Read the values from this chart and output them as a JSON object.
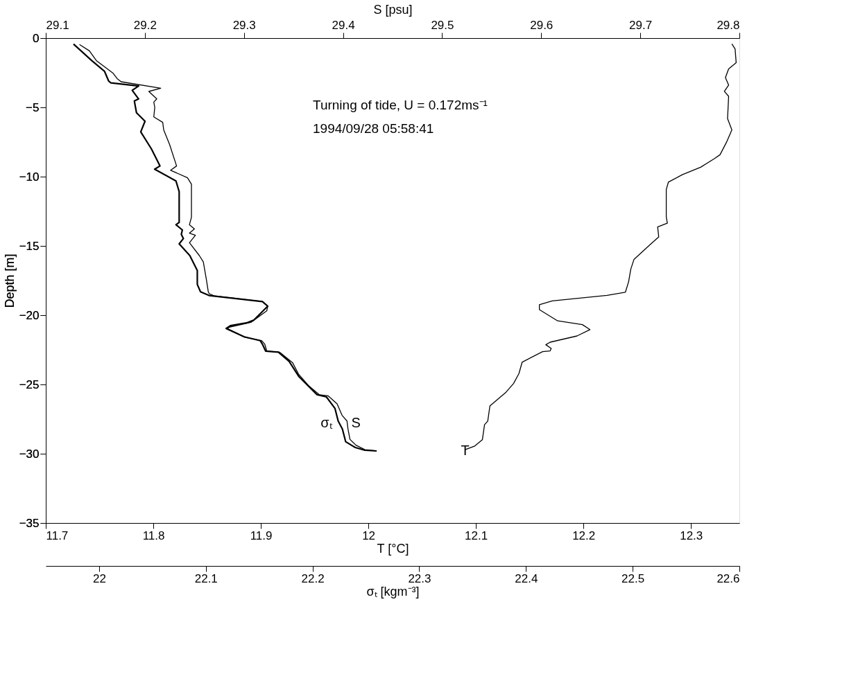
{
  "chart_data": [
    {
      "type": "line",
      "xlabel": "T  [°C]",
      "x2label": "S  [psu]",
      "ylabel": "Depth  [m]",
      "xlim": [
        11.7,
        12.345
      ],
      "xticks": [
        11.7,
        11.8,
        11.9,
        12,
        12.1,
        12.2,
        12.3
      ],
      "x2lim": [
        29.1,
        29.8
      ],
      "x2ticks": [
        29.1,
        29.2,
        29.3,
        29.4,
        29.5,
        29.6,
        29.7,
        29.8
      ],
      "ylim": [
        -35,
        0
      ],
      "yticks": [
        -35,
        -30,
        -25,
        -20,
        -15,
        -10,
        -5,
        0
      ],
      "grid": false,
      "legend": false,
      "line_style": "solid",
      "marker": "none",
      "annotations": [
        "Turning of tide, U = 0.172ms⁻¹",
        "1994/09/28 05:58:41"
      ],
      "series": [
        {
          "name": "S",
          "color": "#000000",
          "axis": "x2",
          "x": [
            29.134,
            29.144,
            29.151,
            29.168,
            29.172,
            29.176,
            29.216,
            29.204,
            29.212,
            29.209,
            29.21,
            29.209,
            29.218,
            29.219,
            29.225,
            29.232,
            29.226,
            29.243,
            29.247,
            29.247,
            29.245,
            29.25,
            29.245,
            29.251,
            29.245,
            29.255,
            29.259,
            29.262,
            29.264,
            29.265,
            29.27,
            29.319,
            29.324,
            29.323,
            29.307,
            29.286,
            29.283,
            29.301,
            29.318,
            29.321,
            29.323,
            29.336,
            29.349,
            29.355,
            29.365,
            29.376,
            29.385,
            29.394,
            29.399,
            29.404,
            29.405,
            29.407,
            29.413,
            29.422,
            29.434
          ],
          "values": [
            -0.46,
            -0.92,
            -1.62,
            -2.54,
            -2.92,
            -3.15,
            -3.62,
            -3.85,
            -4.39,
            -4.62,
            -5.0,
            -5.69,
            -6.08,
            -6.62,
            -7.69,
            -9.23,
            -9.54,
            -10.08,
            -10.54,
            -12.93,
            -13.47,
            -13.77,
            -14.08,
            -14.23,
            -14.77,
            -15.7,
            -16.16,
            -17.39,
            -18.31,
            -18.45,
            -18.61,
            -19.02,
            -19.35,
            -19.69,
            -20.52,
            -20.85,
            -20.96,
            -21.59,
            -21.84,
            -22.09,
            -22.59,
            -22.67,
            -23.42,
            -24.24,
            -25.07,
            -25.74,
            -25.82,
            -26.4,
            -27.23,
            -27.64,
            -28.22,
            -28.97,
            -29.38,
            -29.71,
            -29.8
          ]
        },
        {
          "name": "T",
          "color": "#000000",
          "x": [
            12.338,
            12.341,
            12.342,
            12.335,
            12.332,
            12.335,
            12.331,
            12.335,
            12.334,
            12.338,
            12.333,
            12.327,
            12.322,
            12.309,
            12.292,
            12.279,
            12.277,
            12.277,
            12.278,
            12.269,
            12.27,
            12.261,
            12.247,
            12.244,
            12.242,
            12.239,
            12.222,
            12.171,
            12.159,
            12.159,
            12.176,
            12.199,
            12.206,
            12.194,
            12.169,
            12.165,
            12.17,
            12.169,
            12.162,
            12.143,
            12.14,
            12.135,
            12.128,
            12.124,
            12.113,
            12.111,
            12.108,
            12.106,
            12.099,
            12.09
          ],
          "values": [
            -0.42,
            -0.78,
            -1.77,
            -2.22,
            -2.85,
            -3.39,
            -3.84,
            -4.2,
            -5.81,
            -6.62,
            -7.52,
            -8.42,
            -8.69,
            -9.32,
            -9.86,
            -10.39,
            -10.93,
            -12.91,
            -13.36,
            -13.63,
            -14.35,
            -14.98,
            -15.97,
            -16.68,
            -17.58,
            -18.34,
            -18.57,
            -18.97,
            -19.24,
            -19.6,
            -20.41,
            -20.68,
            -21.04,
            -21.5,
            -21.95,
            -22.13,
            -22.4,
            -22.58,
            -22.63,
            -23.39,
            -24.21,
            -24.93,
            -25.56,
            -25.83,
            -26.55,
            -27.64,
            -27.91,
            -28.99,
            -29.44,
            -29.71
          ]
        }
      ]
    },
    {
      "type": "line",
      "xlabel": "σₜ  [kgm⁻³]",
      "xlim": [
        21.95,
        22.6
      ],
      "xticks": [
        22,
        22.1,
        22.2,
        22.3,
        22.4,
        22.5,
        22.6
      ],
      "ylim": [
        -35,
        0
      ],
      "tick_labels": "x",
      "line_style": "solid",
      "series": [
        {
          "name": "σₜ",
          "color": "#000000",
          "x": [
            21.976,
            21.983,
            21.993,
            22.005,
            22.009,
            22.011,
            22.037,
            22.031,
            22.037,
            22.033,
            22.035,
            22.043,
            22.039,
            22.049,
            22.057,
            22.052,
            22.072,
            22.075,
            22.075,
            22.072,
            22.078,
            22.077,
            22.079,
            22.075,
            22.085,
            22.092,
            22.092,
            22.095,
            22.103,
            22.153,
            22.158,
            22.145,
            22.138,
            22.123,
            22.119,
            22.136,
            22.151,
            22.153,
            22.156,
            22.168,
            22.178,
            22.187,
            22.204,
            22.213,
            22.221,
            22.224,
            22.228,
            22.231,
            22.24,
            22.249,
            22.26
          ],
          "values": [
            -0.43,
            -0.92,
            -1.62,
            -2.39,
            -3.11,
            -3.23,
            -3.46,
            -3.77,
            -4.39,
            -4.54,
            -5.39,
            -6.0,
            -6.77,
            -8.0,
            -9.23,
            -9.46,
            -10.31,
            -11.08,
            -13.31,
            -13.47,
            -13.85,
            -14.16,
            -14.47,
            -14.85,
            -15.7,
            -16.77,
            -17.78,
            -18.31,
            -18.58,
            -19.02,
            -19.35,
            -20.35,
            -20.56,
            -20.76,
            -20.96,
            -21.56,
            -21.84,
            -22.09,
            -22.59,
            -22.67,
            -23.33,
            -24.41,
            -25.73,
            -25.9,
            -26.73,
            -27.64,
            -28.22,
            -29.13,
            -29.55,
            -29.75,
            -29.8
          ]
        }
      ]
    }
  ]
}
